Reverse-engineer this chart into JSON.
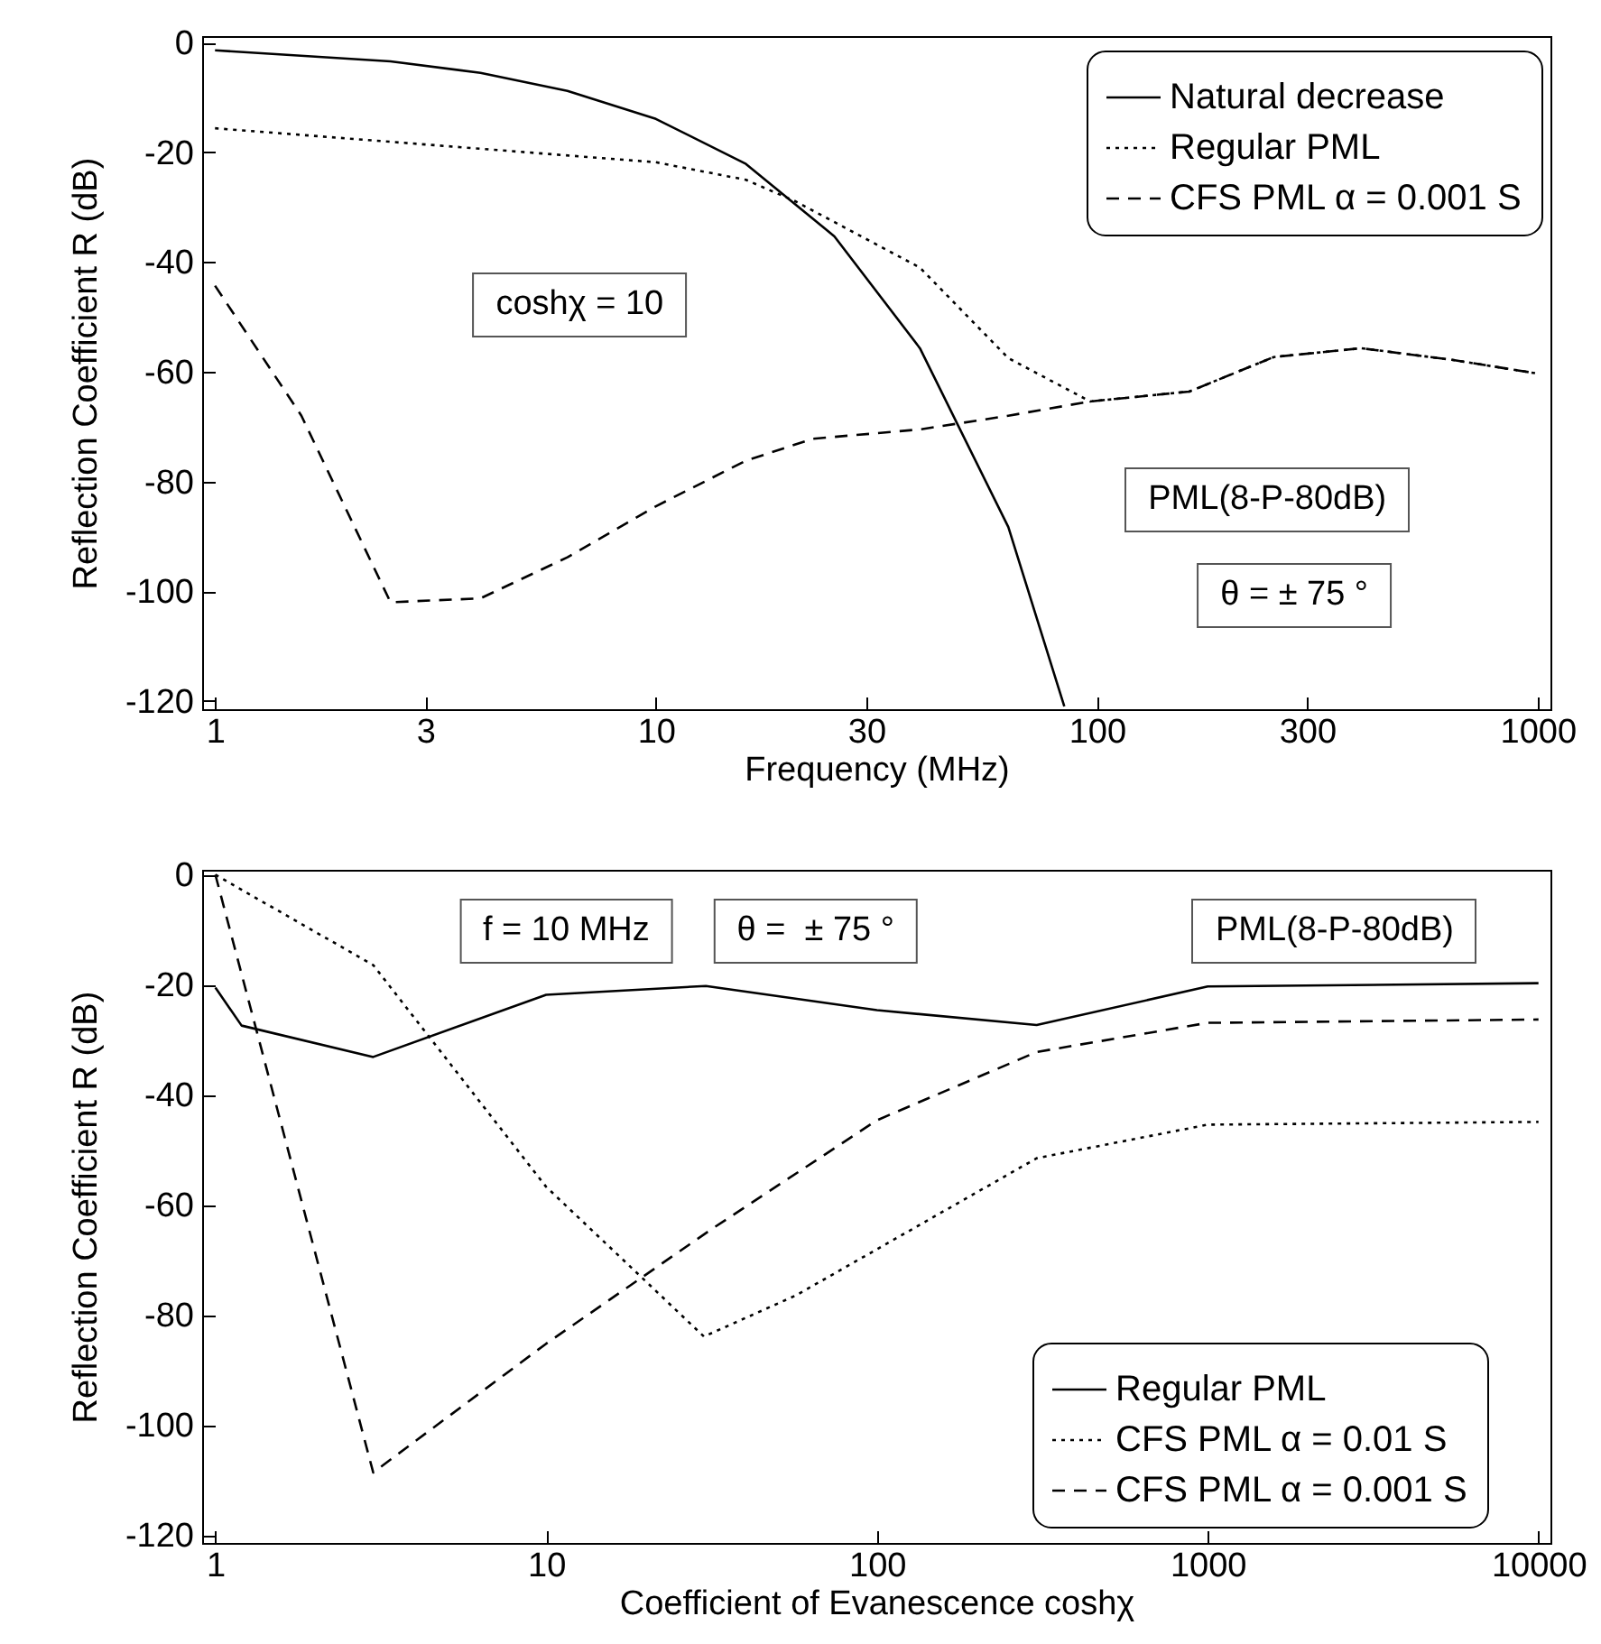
{
  "chart_data": [
    {
      "type": "line",
      "xlabel": "Frequency (MHz)",
      "ylabel": "Reflection Coefficient R (dB)",
      "log": "x",
      "xlim": [
        0.935,
        1069
      ],
      "ylim": [
        -121.5,
        1.2
      ],
      "xticks": [
        1,
        3,
        10,
        30,
        100,
        300,
        1000
      ],
      "yticks": [
        0,
        -20,
        -40,
        -60,
        -80,
        -100,
        -120
      ],
      "grid": false,
      "legend": "top right",
      "marker": "none",
      "annotations": [
        "coshχ = 10",
        "PML(8-P-80dB)",
        "θ = ± 75 °"
      ],
      "series": [
        {
          "name": "Natural decrease",
          "color": "#000000",
          "line_style": "solid",
          "x": [
            1,
            2.5,
            4,
            6.3,
            10,
            16,
            25.4,
            39.7,
            63,
            84.4
          ],
          "values": [
            -1.4,
            -3.4,
            -5.5,
            -8.8,
            -13.9,
            -22.1,
            -35.3,
            -55.7,
            -88.3,
            -121
          ]
        },
        {
          "name": "Regular PML",
          "color": "#000000",
          "line_style": "dotted",
          "x": [
            1,
            10,
            16,
            20.7,
            39.7,
            63,
            96.6,
            162,
            252,
            398,
            638,
            997
          ],
          "values": [
            -15.6,
            -21.8,
            -25,
            -28.9,
            -41,
            -57.5,
            -65.4,
            -63.6,
            -57.3,
            -55.7,
            -57.8,
            -60.3
          ]
        },
        {
          "name": "CFS PML α = 0.001 S",
          "color": "#000000",
          "line_style": "dashed",
          "x": [
            1,
            1.57,
            2.5,
            4,
            6.3,
            10,
            16,
            22.7,
            39.7,
            63,
            96.6,
            162,
            252,
            398,
            638,
            997
          ],
          "values": [
            -44.3,
            -68,
            -102,
            -101.3,
            -93.8,
            -84.5,
            -76.2,
            -72.2,
            -70.5,
            -68,
            -65.4,
            -63.6,
            -57.3,
            -55.7,
            -57.8,
            -60.3
          ]
        }
      ]
    },
    {
      "type": "line",
      "xlabel": "Coefficient of Evanescence coshχ",
      "ylabel": "Reflection Coefficient R (dB)",
      "log": "x",
      "xlim": [
        0.912,
        10870
      ],
      "ylim": [
        -121.4,
        0.9
      ],
      "xticks": [
        1,
        10,
        100,
        1000,
        10000
      ],
      "yticks": [
        0,
        -20,
        -40,
        -60,
        -80,
        -100,
        -120
      ],
      "grid": false,
      "legend": "bottom right",
      "marker": "none",
      "annotations": [
        "f = 10 MHz",
        "θ =  ± 75 °",
        "PML(8-P-80dB)"
      ],
      "series": [
        {
          "name": "Regular PML",
          "color": "#000000",
          "line_style": "solid",
          "x": [
            1,
            1.2,
            3,
            10,
            30.4,
            100,
            304,
            1000,
            10000
          ],
          "values": [
            -20.5,
            -27.4,
            -33.1,
            -21.8,
            -20.2,
            -24.6,
            -27.3,
            -20.3,
            -19.7
          ]
        },
        {
          "name": "CFS PML α = 0.01 S",
          "color": "#000000",
          "line_style": "dotted",
          "x": [
            1,
            3,
            10,
            30,
            57,
            304,
            1000,
            10000
          ],
          "values": [
            0,
            -16.4,
            -56.7,
            -83.9,
            -76.4,
            -51.5,
            -45.4,
            -44.9
          ]
        },
        {
          "name": "CFS PML α = 0.001 S",
          "color": "#000000",
          "line_style": "dashed",
          "x": [
            1,
            3,
            10,
            31.6,
            100,
            304,
            1000,
            10000
          ],
          "values": [
            0,
            -108.6,
            -85.2,
            -64.4,
            -44.6,
            -32.2,
            -26.9,
            -26.3
          ]
        }
      ]
    }
  ]
}
